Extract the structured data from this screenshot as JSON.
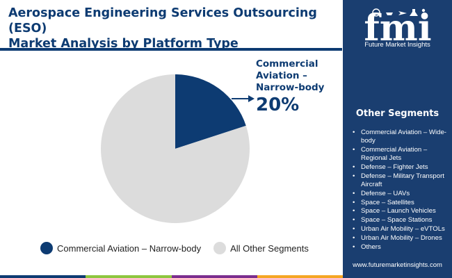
{
  "header": {
    "title_line1": "Aerospace Engineering Services Outsourcing (ESO)",
    "title_line2": "Market Analysis by Platform Type"
  },
  "brand": {
    "logo_text": "fmi",
    "name": "Future Market Insights",
    "website": "www.futuremarketinsights.com"
  },
  "callout": {
    "line1": "Commercial",
    "line2": "Aviation –",
    "line3": "Narrow-body",
    "percent": "20%"
  },
  "other_segments": {
    "heading": "Other Segments",
    "items": [
      "Commercial Aviation – Wide-body",
      "Commercial Aviation – Regional Jets",
      "Defense – Fighter Jets",
      "Defense – Military Transport Aircraft",
      "Defense – UAVs",
      "Space – Satellites",
      "Space – Launch Vehicles",
      "Space – Space Stations",
      "Urban Air Mobility – eVTOLs",
      "Urban Air Mobility – Drones",
      "Others"
    ]
  },
  "colors": {
    "primary": "#0d3b72",
    "panel": "#1a3e70",
    "other": "#dcdcdc",
    "footer": [
      "#0d3b72",
      "#8dc63f",
      "#7b2d8e",
      "#f5a623"
    ]
  },
  "chart_data": {
    "type": "pie",
    "title": "Aerospace Engineering Services Outsourcing (ESO) Market Analysis by Platform Type",
    "slices": [
      {
        "label": "Commercial Aviation – Narrow-body",
        "value": 20,
        "color": "#0d3b72"
      },
      {
        "label": "All Other Segments",
        "value": 80,
        "color": "#dcdcdc"
      }
    ],
    "legend_position": "bottom"
  }
}
